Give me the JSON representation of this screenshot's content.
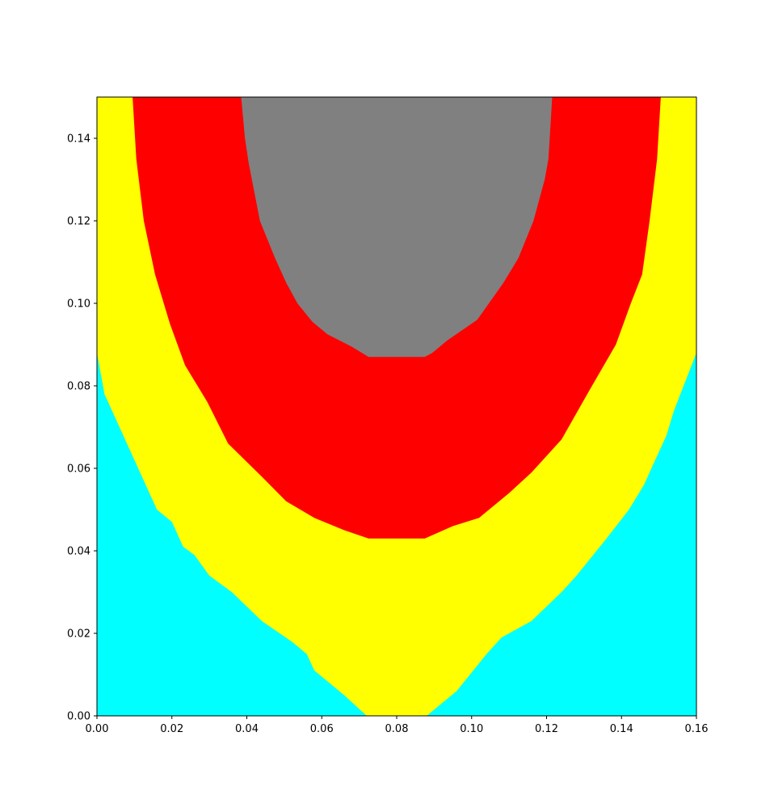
{
  "chart_data": {
    "type": "area",
    "title": "",
    "xlabel": "",
    "ylabel": "",
    "xlim": [
      0.0,
      0.16
    ],
    "ylim": [
      0.0,
      0.15
    ],
    "grid": false,
    "x_ticks": [
      {
        "value": 0.0,
        "label": "0.00"
      },
      {
        "value": 0.02,
        "label": "0.02"
      },
      {
        "value": 0.04,
        "label": "0.04"
      },
      {
        "value": 0.06,
        "label": "0.06"
      },
      {
        "value": 0.08,
        "label": "0.08"
      },
      {
        "value": 0.1,
        "label": "0.10"
      },
      {
        "value": 0.12,
        "label": "0.12"
      },
      {
        "value": 0.14,
        "label": "0.14"
      },
      {
        "value": 0.16,
        "label": "0.16"
      }
    ],
    "y_ticks": [
      {
        "value": 0.0,
        "label": "0.00"
      },
      {
        "value": 0.02,
        "label": "0.02"
      },
      {
        "value": 0.04,
        "label": "0.04"
      },
      {
        "value": 0.06,
        "label": "0.06"
      },
      {
        "value": 0.08,
        "label": "0.08"
      },
      {
        "value": 0.1,
        "label": "0.10"
      },
      {
        "value": 0.12,
        "label": "0.12"
      },
      {
        "value": 0.14,
        "label": "0.14"
      }
    ],
    "regions": [
      {
        "id": "cyan",
        "color": "#00ffff",
        "points": [
          [
            0.0,
            0.0
          ],
          [
            0.16,
            0.0
          ],
          [
            0.16,
            0.15
          ],
          [
            0.0,
            0.15
          ]
        ]
      },
      {
        "id": "yellow",
        "color": "#ffff00",
        "points": [
          [
            0.0,
            0.15
          ],
          [
            0.0,
            0.088
          ],
          [
            0.002,
            0.078
          ],
          [
            0.004,
            0.074
          ],
          [
            0.008,
            0.066
          ],
          [
            0.012,
            0.058
          ],
          [
            0.016,
            0.05
          ],
          [
            0.02,
            0.047
          ],
          [
            0.023,
            0.041
          ],
          [
            0.026,
            0.039
          ],
          [
            0.03,
            0.034
          ],
          [
            0.036,
            0.03
          ],
          [
            0.044,
            0.023
          ],
          [
            0.052,
            0.018
          ],
          [
            0.056,
            0.015
          ],
          [
            0.058,
            0.011
          ],
          [
            0.066,
            0.005
          ],
          [
            0.072,
            0.0
          ],
          [
            0.088,
            0.0
          ],
          [
            0.096,
            0.006
          ],
          [
            0.104,
            0.015
          ],
          [
            0.108,
            0.019
          ],
          [
            0.116,
            0.023
          ],
          [
            0.124,
            0.03
          ],
          [
            0.128,
            0.034
          ],
          [
            0.136,
            0.043
          ],
          [
            0.142,
            0.05
          ],
          [
            0.146,
            0.056
          ],
          [
            0.148,
            0.06
          ],
          [
            0.152,
            0.068
          ],
          [
            0.154,
            0.074
          ],
          [
            0.16,
            0.088
          ],
          [
            0.16,
            0.15
          ]
        ]
      },
      {
        "id": "red",
        "color": "#ff0000",
        "points": [
          [
            0.0095,
            0.15
          ],
          [
            0.0105,
            0.135
          ],
          [
            0.0125,
            0.12
          ],
          [
            0.0155,
            0.107
          ],
          [
            0.0195,
            0.095
          ],
          [
            0.0235,
            0.085
          ],
          [
            0.0295,
            0.076
          ],
          [
            0.035,
            0.066
          ],
          [
            0.044,
            0.058
          ],
          [
            0.0505,
            0.052
          ],
          [
            0.058,
            0.048
          ],
          [
            0.066,
            0.045
          ],
          [
            0.0725,
            0.043
          ],
          [
            0.0875,
            0.043
          ],
          [
            0.095,
            0.046
          ],
          [
            0.102,
            0.048
          ],
          [
            0.11,
            0.054
          ],
          [
            0.116,
            0.059
          ],
          [
            0.124,
            0.067
          ],
          [
            0.129,
            0.075
          ],
          [
            0.1315,
            0.079
          ],
          [
            0.1385,
            0.09
          ],
          [
            0.1425,
            0.1
          ],
          [
            0.1455,
            0.107
          ],
          [
            0.1475,
            0.12
          ],
          [
            0.1495,
            0.135
          ],
          [
            0.1505,
            0.15
          ]
        ]
      },
      {
        "id": "gray",
        "color": "#808080",
        "points": [
          [
            0.0385,
            0.15
          ],
          [
            0.0395,
            0.14
          ],
          [
            0.0405,
            0.134
          ],
          [
            0.0435,
            0.12
          ],
          [
            0.0475,
            0.111
          ],
          [
            0.0505,
            0.105
          ],
          [
            0.0535,
            0.1
          ],
          [
            0.0575,
            0.0955
          ],
          [
            0.0615,
            0.0925
          ],
          [
            0.068,
            0.0895
          ],
          [
            0.0725,
            0.087
          ],
          [
            0.0875,
            0.087
          ],
          [
            0.0895,
            0.088
          ],
          [
            0.0935,
            0.091
          ],
          [
            0.1015,
            0.096
          ],
          [
            0.1085,
            0.105
          ],
          [
            0.1125,
            0.111
          ],
          [
            0.1165,
            0.12
          ],
          [
            0.1195,
            0.13
          ],
          [
            0.1205,
            0.135
          ],
          [
            0.1215,
            0.15
          ]
        ]
      }
    ]
  }
}
